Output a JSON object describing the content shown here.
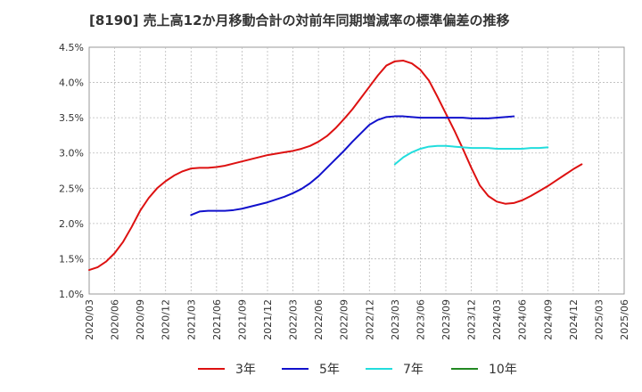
{
  "chart_data": {
    "type": "line",
    "title": "[8190]  売上高12か月移動合計の対前年同期増減率の標準偏差の推移",
    "xlabel": "",
    "ylabel": "",
    "x_ticks": [
      "2020/03",
      "2020/06",
      "2020/09",
      "2020/12",
      "2021/03",
      "2021/06",
      "2021/09",
      "2021/12",
      "2022/03",
      "2022/06",
      "2022/09",
      "2022/12",
      "2023/03",
      "2023/06",
      "2023/09",
      "2023/12",
      "2024/03",
      "2024/06",
      "2024/09",
      "2024/12",
      "2025/03",
      "2025/06"
    ],
    "y_ticks": [
      "1.0%",
      "1.5%",
      "2.0%",
      "2.5%",
      "3.0%",
      "3.5%",
      "4.0%",
      "4.5%"
    ],
    "ylim": [
      1.0,
      4.5
    ],
    "grid": true,
    "legend_position": "bottom",
    "series": [
      {
        "name": "3年",
        "color": "#dd1111",
        "start": "2020/03",
        "values": [
          1.34,
          1.38,
          1.46,
          1.58,
          1.74,
          1.95,
          2.18,
          2.36,
          2.5,
          2.6,
          2.68,
          2.74,
          2.78,
          2.79,
          2.79,
          2.8,
          2.82,
          2.85,
          2.88,
          2.91,
          2.94,
          2.97,
          2.99,
          3.01,
          3.03,
          3.06,
          3.1,
          3.16,
          3.24,
          3.35,
          3.48,
          3.62,
          3.78,
          3.94,
          4.1,
          4.24,
          4.3,
          4.31,
          4.27,
          4.18,
          4.03,
          3.8,
          3.56,
          3.32,
          3.06,
          2.79,
          2.54,
          2.39,
          2.31,
          2.28,
          2.29,
          2.33,
          2.39,
          2.46,
          2.53,
          2.61,
          2.69,
          2.77,
          2.84
        ]
      },
      {
        "name": "5年",
        "color": "#1111cc",
        "start": "2021/03",
        "values": [
          2.12,
          2.17,
          2.18,
          2.18,
          2.18,
          2.19,
          2.21,
          2.24,
          2.27,
          2.3,
          2.34,
          2.38,
          2.43,
          2.49,
          2.57,
          2.67,
          2.79,
          2.91,
          3.03,
          3.16,
          3.28,
          3.4,
          3.47,
          3.51,
          3.52,
          3.52,
          3.51,
          3.5,
          3.5,
          3.5,
          3.5,
          3.5,
          3.5,
          3.49,
          3.49,
          3.49,
          3.5,
          3.51,
          3.52
        ]
      },
      {
        "name": "7年",
        "color": "#22dddd",
        "start": "2023/03",
        "values": [
          2.84,
          2.94,
          3.01,
          3.06,
          3.09,
          3.1,
          3.1,
          3.09,
          3.08,
          3.07,
          3.07,
          3.07,
          3.06,
          3.06,
          3.06,
          3.06,
          3.07,
          3.07,
          3.08
        ]
      },
      {
        "name": "10年",
        "color": "#228822",
        "start": "2025/03",
        "values": []
      }
    ]
  }
}
